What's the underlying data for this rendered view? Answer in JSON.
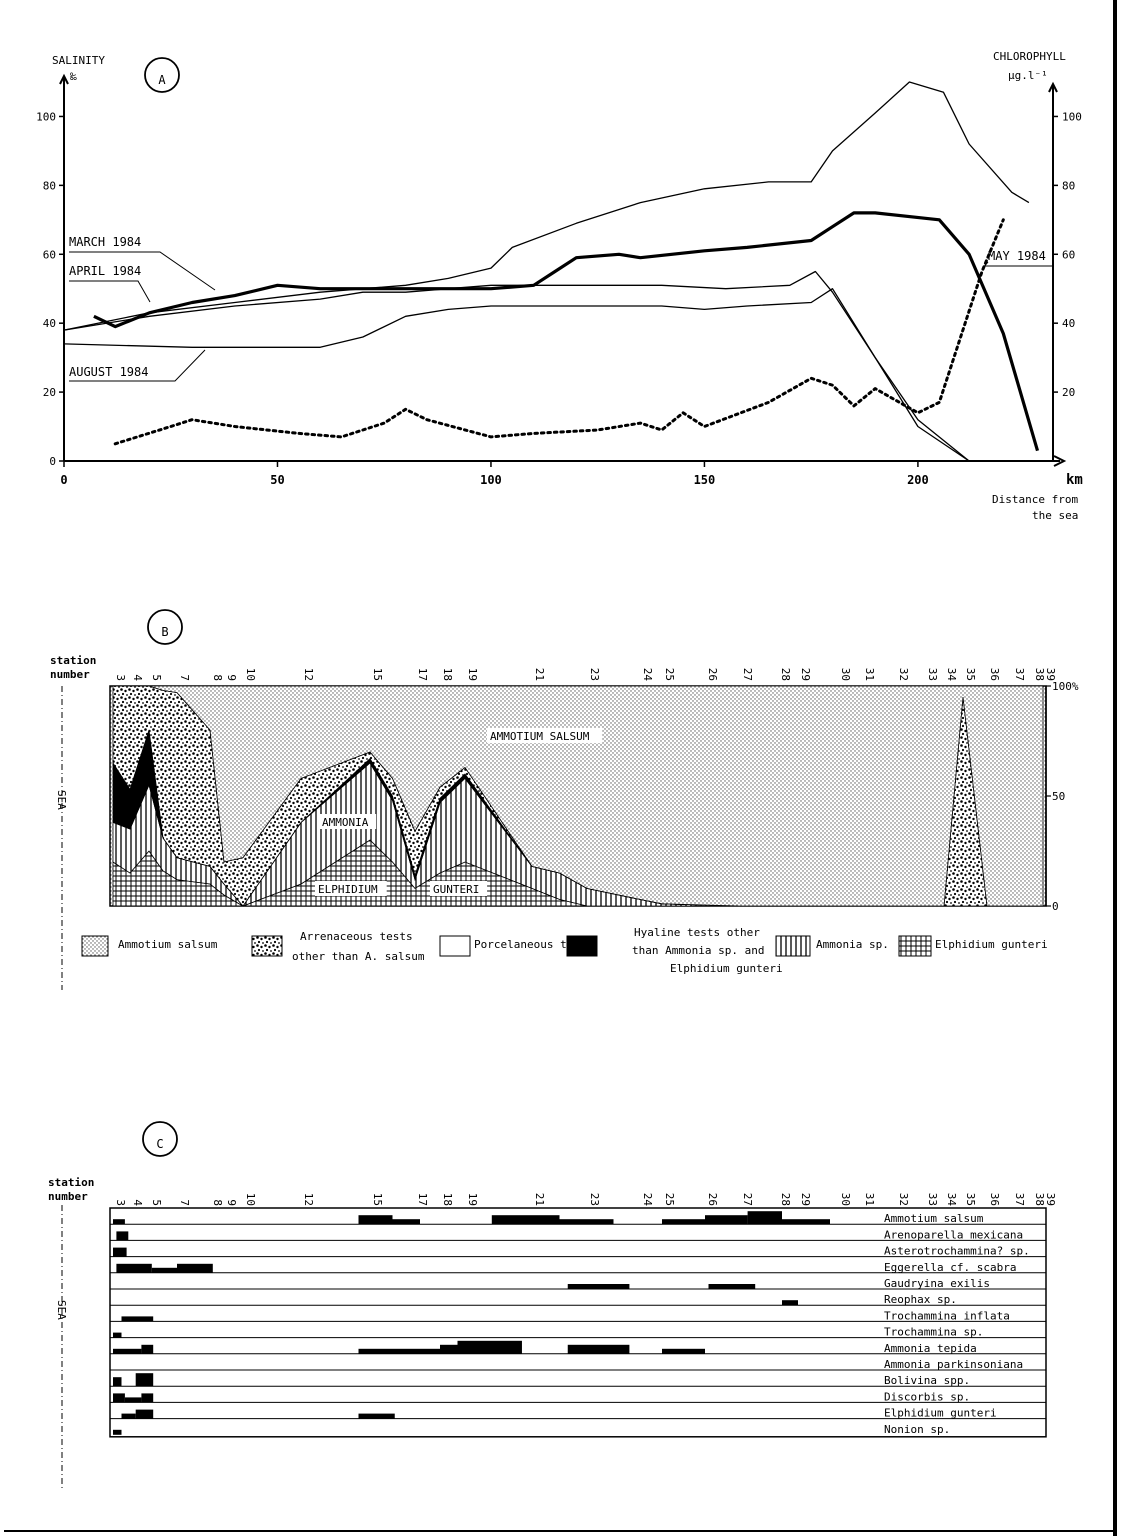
{
  "chart_data": [
    {
      "type": "line",
      "panel_label": "A",
      "ylabel_left": "SALINITY",
      "ylabel_left_unit": "‰",
      "ylabel_right": "CHLOROPHYLL",
      "ylabel_right_unit": "µg.l⁻¹",
      "xlabel_unit": "km",
      "xlabel": "Distance from the sea",
      "xlim": [
        0,
        230
      ],
      "ylim": [
        0,
        110
      ],
      "x_ticks": [
        "0",
        "50",
        "100",
        "150",
        "200"
      ],
      "y_ticks_left": [
        "0",
        "20",
        "40",
        "60",
        "80",
        "100"
      ],
      "y_ticks_right": [
        "20",
        "40",
        "60",
        "80",
        "100"
      ],
      "series": [
        {
          "name": "MARCH 1984",
          "style": "thin",
          "x": [
            0,
            20,
            40,
            60,
            80,
            90,
            100,
            105,
            120,
            135,
            150,
            165,
            175,
            180,
            190,
            198,
            206,
            212,
            222,
            226
          ],
          "y": [
            38,
            43,
            46,
            49,
            51,
            53,
            56,
            62,
            69,
            75,
            79,
            81,
            81,
            90,
            101,
            110,
            107,
            92,
            78,
            75
          ]
        },
        {
          "name": "APRIL 1984",
          "style": "thin",
          "x": [
            0,
            20,
            40,
            60,
            70,
            80,
            90,
            100,
            120,
            140,
            155,
            170,
            176,
            180,
            190,
            200,
            212
          ],
          "y": [
            38,
            42,
            45,
            47,
            49,
            49,
            50,
            51,
            51,
            51,
            50,
            51,
            55,
            49,
            30,
            12,
            0
          ]
        },
        {
          "name": "AUGUST 1984",
          "style": "thin",
          "x": [
            0,
            30,
            60,
            70,
            80,
            90,
            100,
            120,
            140,
            150,
            160,
            175,
            180,
            190,
            200,
            212
          ],
          "y": [
            34,
            33,
            33,
            36,
            42,
            44,
            45,
            45,
            45,
            44,
            45,
            46,
            50,
            30,
            10,
            0
          ]
        },
        {
          "name": "MAY 1984",
          "style": "thick",
          "x": [
            7,
            12,
            20,
            30,
            40,
            50,
            60,
            70,
            90,
            100,
            110,
            115,
            120,
            130,
            135,
            150,
            160,
            175,
            180,
            185,
            190,
            205,
            212,
            220,
            228
          ],
          "y": [
            42,
            39,
            43,
            46,
            48,
            51,
            50,
            50,
            50,
            50,
            51,
            55,
            59,
            60,
            59,
            61,
            62,
            64,
            68,
            72,
            72,
            70,
            60,
            37,
            3
          ]
        },
        {
          "name": "",
          "style": "dotted",
          "x": [
            12,
            25,
            30,
            40,
            55,
            65,
            75,
            80,
            85,
            100,
            110,
            125,
            135,
            140,
            145,
            150,
            165,
            175,
            180,
            185,
            190,
            200,
            205,
            215,
            220
          ],
          "y": [
            5,
            10,
            12,
            10,
            8,
            7,
            11,
            15,
            12,
            7,
            8,
            9,
            11,
            9,
            14,
            10,
            17,
            24,
            22,
            16,
            21,
            14,
            17,
            55,
            70
          ]
        }
      ]
    },
    {
      "type": "area",
      "panel_label": "B",
      "xlabel": "station\nnumber",
      "side_label": "SEA",
      "y_ticks_right": [
        "0",
        "50",
        "100%"
      ],
      "station_labels": [
        "3",
        "4",
        "5",
        "7",
        "8",
        "9",
        "10",
        "12",
        "15",
        "17",
        "18",
        "19",
        "21",
        "23",
        "24",
        "25",
        "26",
        "27",
        "28",
        "29",
        "30",
        "31",
        "32",
        "33",
        "34",
        "35",
        "36",
        "37",
        "38",
        "39"
      ],
      "area_labels": [
        "AMMOTIUM SALSUM",
        "AMMONIA",
        "ELPHIDIUM",
        "GUNTERI"
      ],
      "legend": [
        {
          "name": "Ammotium salsum",
          "pattern": "dots"
        },
        {
          "name": "Arrenaceous tests other than A. salsum",
          "pattern": "coarse"
        },
        {
          "name": "Porcelaneous tests",
          "pattern": "white"
        },
        {
          "name": "Hyaline tests other than Ammonia sp. and Elphidium gunteri",
          "pattern": "black"
        },
        {
          "name": "Ammonia sp.",
          "pattern": "vlines"
        },
        {
          "name": "Elphidium gunteri",
          "pattern": "grid"
        }
      ],
      "x": [
        3,
        4,
        5,
        6,
        7,
        8,
        9,
        10,
        12,
        15,
        16,
        17,
        18,
        19,
        21,
        22,
        23,
        24,
        25,
        27,
        34,
        35,
        36,
        39
      ],
      "series": [
        {
          "name": "Elphidium gunteri",
          "values": [
            20,
            15,
            25,
            16,
            12,
            10,
            5,
            0,
            10,
            30,
            20,
            8,
            15,
            20,
            8,
            3,
            0,
            0,
            0,
            0,
            0,
            0,
            0,
            0
          ]
        },
        {
          "name": "Ammonia sp.",
          "values": [
            18,
            20,
            30,
            15,
            10,
            8,
            5,
            0,
            28,
            35,
            28,
            4,
            32,
            38,
            10,
            12,
            8,
            3,
            1,
            0,
            0,
            0,
            0,
            0
          ]
        },
        {
          "name": "Hyaline tests other than Ammonia sp. and Elphidium gunteri",
          "values": [
            27,
            18,
            25,
            0,
            0,
            0,
            0,
            0,
            0,
            2,
            2,
            2,
            2,
            2,
            0,
            0,
            0,
            0,
            0,
            0,
            0,
            0,
            0,
            0
          ]
        },
        {
          "name": "Porcelaneous tests",
          "values": [
            0,
            0,
            0,
            0,
            0,
            0,
            0,
            0,
            0,
            0,
            0,
            0,
            0,
            0,
            0,
            0,
            0,
            0,
            0,
            0,
            0,
            0,
            0,
            0
          ]
        },
        {
          "name": "Arrenaceous tests other than A. salsum",
          "values": [
            35,
            47,
            20,
            67,
            75,
            62,
            10,
            22,
            20,
            3,
            8,
            20,
            5,
            3,
            0,
            0,
            0,
            0,
            0,
            0,
            0,
            95,
            0,
            0
          ]
        },
        {
          "name": "Ammotium salsum",
          "values": [
            0,
            0,
            0,
            2,
            3,
            20,
            80,
            78,
            42,
            30,
            42,
            66,
            46,
            37,
            82,
            85,
            92,
            97,
            99,
            100,
            100,
            5,
            100,
            100
          ]
        }
      ]
    },
    {
      "type": "table",
      "panel_label": "C",
      "xlabel": "station\nnumber",
      "side_label": "SEA",
      "station_labels": [
        "3",
        "4",
        "5",
        "7",
        "8",
        "9",
        "10",
        "12",
        "15",
        "17",
        "18",
        "19",
        "21",
        "23",
        "24",
        "25",
        "26",
        "27",
        "28",
        "29",
        "30",
        "31",
        "32",
        "33",
        "34",
        "35",
        "36",
        "37",
        "38",
        "39"
      ],
      "rows": [
        {
          "name": "Ammotium salsum",
          "bars": [
            [
              3,
              3.7,
              1
            ],
            [
              14.5,
              16,
              2
            ],
            [
              16,
              17.2,
              1
            ],
            [
              19.8,
              22,
              2
            ],
            [
              22,
              23.5,
              1
            ],
            [
              25,
              26,
              1
            ],
            [
              26,
              27.2,
              2
            ],
            [
              27.2,
              28.2,
              3
            ],
            [
              28.2,
              29.2,
              1
            ],
            [
              29.2,
              29.8,
              1
            ]
          ]
        },
        {
          "name": "Arenoparella mexicana",
          "bars": [
            [
              3.2,
              3.9,
              2
            ]
          ]
        },
        {
          "name": "Asterotrochammina? sp.",
          "bars": [
            [
              3,
              3.8,
              2
            ]
          ]
        },
        {
          "name": "Eggerella cf. scabra",
          "bars": [
            [
              3.2,
              5.2,
              2
            ],
            [
              5.2,
              7,
              1
            ],
            [
              7,
              8.2,
              2
            ]
          ]
        },
        {
          "name": "Gaudryina exilis",
          "bars": [
            [
              22.3,
              23.8,
              1
            ],
            [
              26.1,
              27.4,
              1
            ]
          ]
        },
        {
          "name": "Reophax sp.",
          "bars": [
            [
              28.2,
              29,
              1
            ]
          ]
        },
        {
          "name": "Trochammina inflata",
          "bars": [
            [
              3.5,
              5.3,
              1
            ]
          ]
        },
        {
          "name": "Trochammina sp.",
          "bars": [
            [
              3,
              3.5,
              1
            ]
          ]
        },
        {
          "name": "Ammonia tepida",
          "bars": [
            [
              3,
              4.6,
              1
            ],
            [
              4.6,
              5.3,
              2
            ],
            [
              14.5,
              18,
              1
            ],
            [
              18,
              18.7,
              2
            ],
            [
              18.7,
              20.7,
              3
            ],
            [
              22.3,
              23.8,
              2
            ],
            [
              25,
              26,
              1
            ]
          ]
        },
        {
          "name": "Ammonia parkinsoniana",
          "bars": []
        },
        {
          "name": "Bolivina spp.",
          "bars": [
            [
              3,
              3.5,
              2
            ],
            [
              4.3,
              5.3,
              3
            ]
          ]
        },
        {
          "name": "Discorbis sp.",
          "bars": [
            [
              3,
              3.7,
              2
            ],
            [
              3.7,
              4.6,
              1
            ],
            [
              4.6,
              5.3,
              2
            ]
          ]
        },
        {
          "name": "Elphidium gunteri",
          "bars": [
            [
              3.5,
              4.3,
              1
            ],
            [
              4.3,
              5.3,
              2
            ],
            [
              14.5,
              16.1,
              1
            ]
          ]
        },
        {
          "name": "Nonion sp.",
          "bars": [
            [
              3,
              3.5,
              1
            ]
          ]
        }
      ]
    }
  ]
}
